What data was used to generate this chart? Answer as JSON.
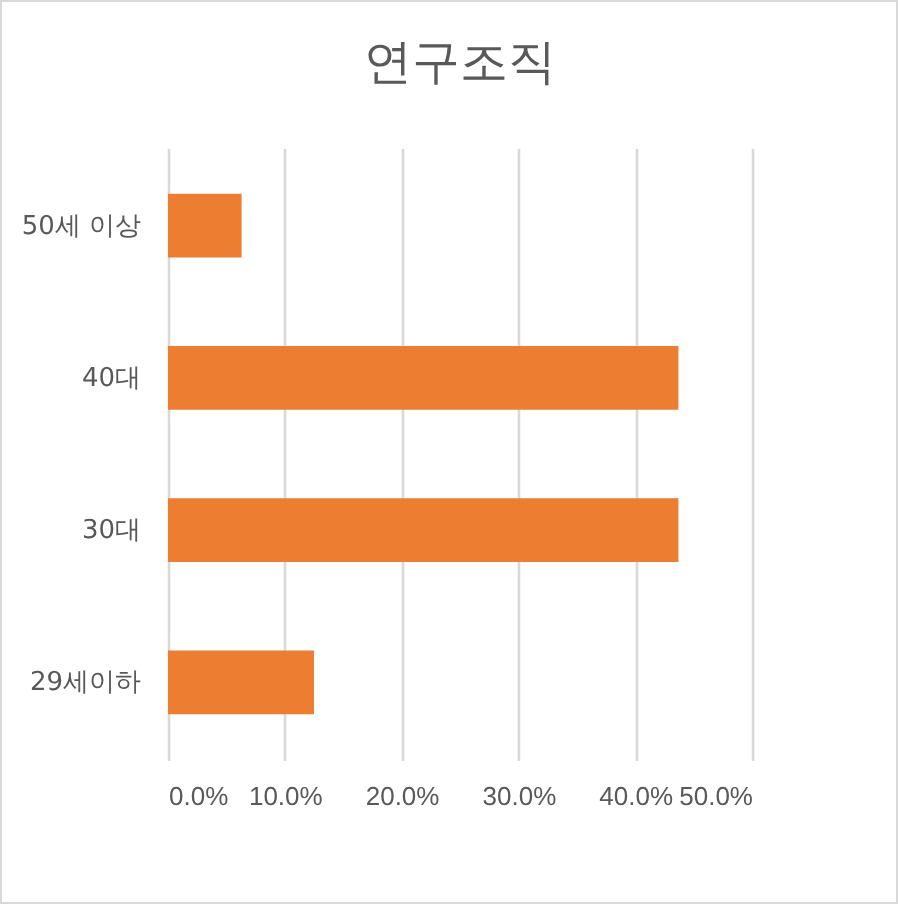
{
  "chart_data": {
    "type": "bar",
    "orientation": "horizontal",
    "title": "연구조직",
    "categories": [
      "50세 이상",
      "40대",
      "30대",
      "29세이하"
    ],
    "values": [
      6.3,
      43.7,
      43.7,
      12.5
    ],
    "color": "#ed7d31",
    "xlim": [
      0,
      50
    ],
    "xticks": [
      {
        "value": 0,
        "label": "0.0%"
      },
      {
        "value": 10,
        "label": "10.0%"
      },
      {
        "value": 20,
        "label": "20.0%"
      },
      {
        "value": 30,
        "label": "30.0%"
      },
      {
        "value": 40,
        "label": "40.0%"
      },
      {
        "value": 50,
        "label": "50.0%"
      }
    ],
    "grid": "x"
  }
}
